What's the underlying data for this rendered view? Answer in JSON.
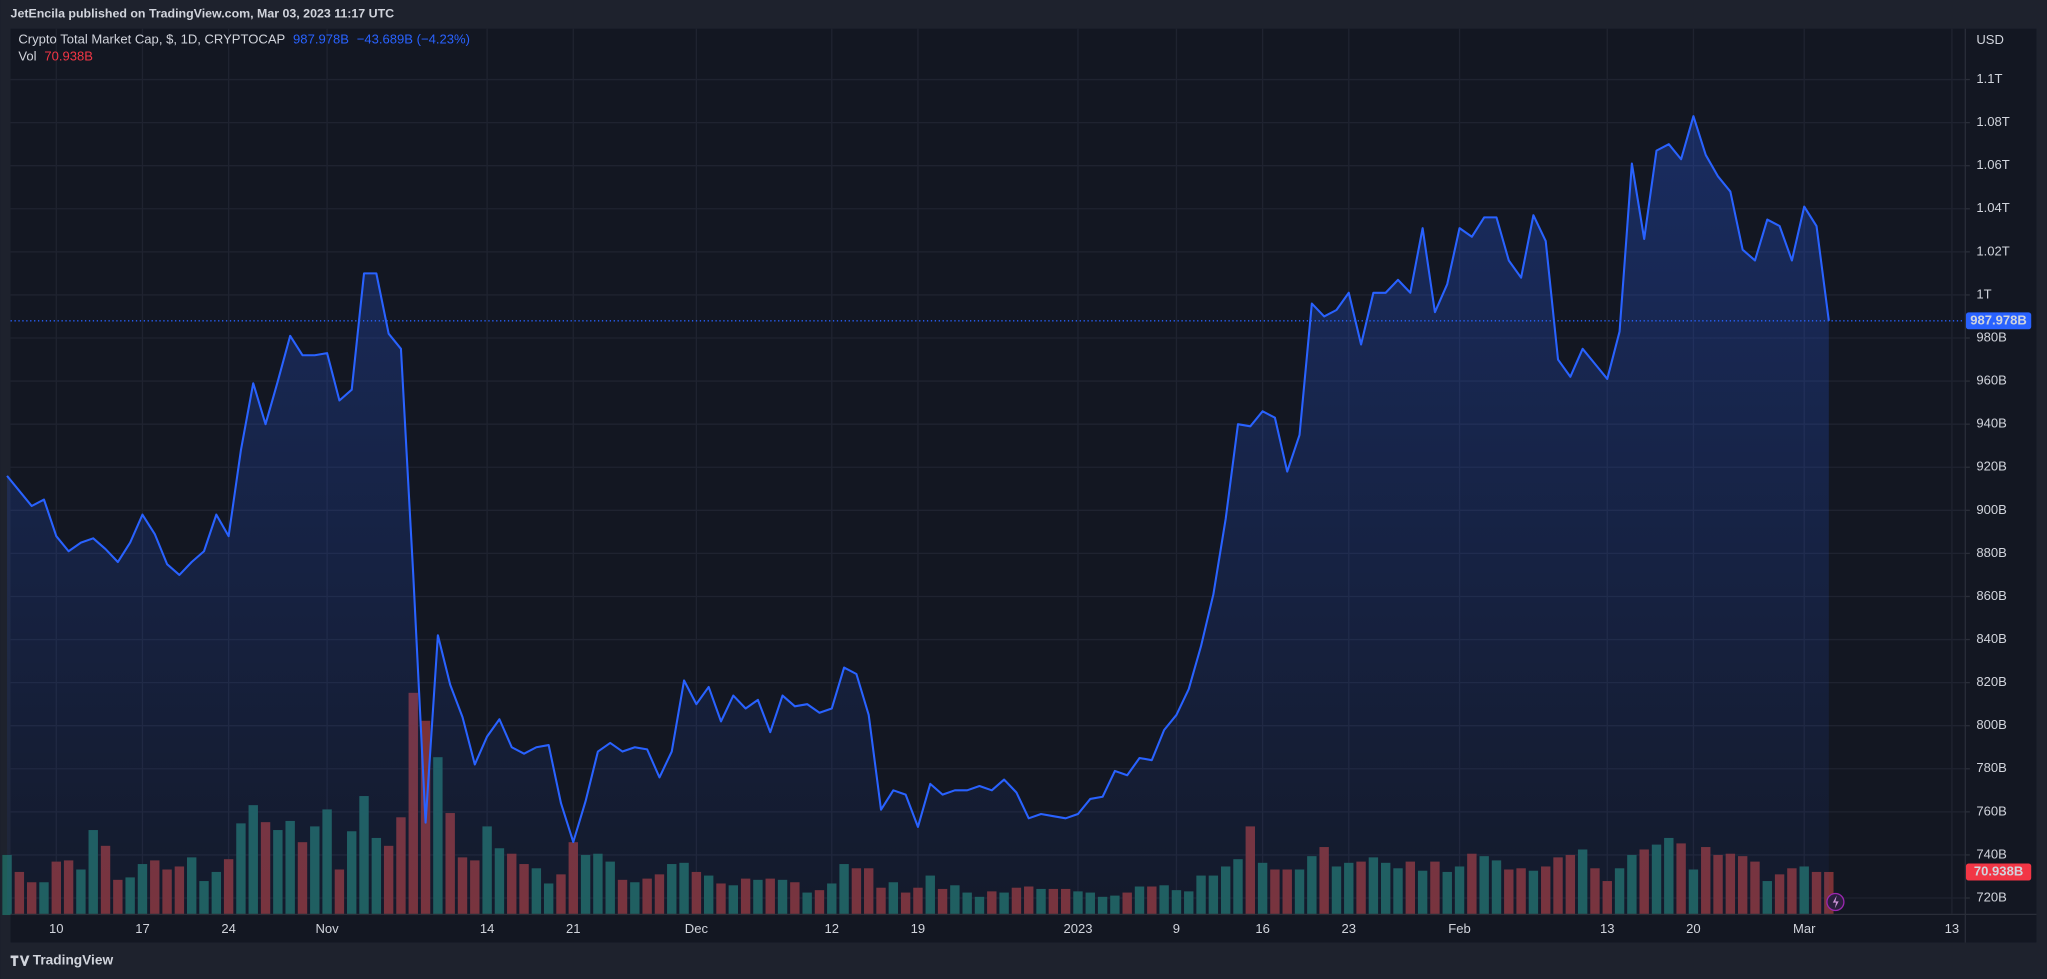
{
  "header": "JetEncila published on TradingView.com, Mar 03, 2023 11:17 UTC",
  "footer": "TradingView",
  "chart_data": {
    "type": "line",
    "y_unit": "USD",
    "legend": {
      "last": "987.978B",
      "change": "−43.689B (−4.23%)"
    },
    "volume_legend": {
      "last": "70.938B"
    },
    "categories": [
      null,
      null,
      null,
      null,
      "10",
      null,
      null,
      null,
      null,
      null,
      null,
      "17",
      null,
      null,
      null,
      null,
      null,
      null,
      "24",
      null,
      null,
      null,
      null,
      null,
      null,
      null,
      "Nov",
      null,
      null,
      null,
      null,
      null,
      null,
      null,
      null,
      null,
      null,
      null,
      null,
      "14",
      null,
      null,
      null,
      null,
      null,
      null,
      "21",
      null,
      null,
      null,
      null,
      null,
      null,
      null,
      null,
      null,
      "Dec",
      null,
      null,
      null,
      null,
      null,
      null,
      null,
      null,
      null,
      null,
      "12",
      null,
      null,
      null,
      null,
      null,
      null,
      "19",
      null,
      null,
      null,
      null,
      null,
      null,
      null,
      null,
      null,
      null,
      null,
      null,
      "2023",
      null,
      null,
      null,
      null,
      null,
      null,
      null,
      "9",
      null,
      null,
      null,
      null,
      null,
      null,
      "16",
      null,
      null,
      null,
      null,
      null,
      null,
      "23",
      null,
      null,
      null,
      null,
      null,
      null,
      null,
      null,
      "Feb",
      null,
      null,
      null,
      null,
      null,
      null,
      null,
      null,
      null,
      null,
      null,
      "13",
      null,
      null,
      null,
      null,
      null,
      null,
      "20",
      null,
      null,
      null,
      null,
      null,
      null,
      null,
      null,
      "Mar",
      null,
      null,
      null,
      null,
      null,
      null,
      null,
      null,
      null,
      null,
      null,
      "13"
    ],
    "series": [
      {
        "name": "Crypto Total Market Cap, $, 1D, CRYPTOCAP",
        "color": "#2962ff",
        "values": [
          916,
          909,
          902,
          905,
          888,
          881,
          885,
          887,
          882,
          876,
          885,
          898,
          889,
          875,
          870,
          876,
          881,
          898,
          888,
          928,
          959,
          940,
          960,
          981,
          972,
          972,
          973,
          951,
          956,
          1010,
          1010,
          982,
          975,
          870,
          755,
          842,
          819,
          804,
          782,
          795,
          803,
          790,
          787,
          790,
          791,
          764,
          746,
          765,
          788,
          792,
          788,
          790,
          789,
          776,
          788,
          821,
          810,
          818,
          802,
          814,
          808,
          812,
          797,
          814,
          809,
          810,
          806,
          808,
          827,
          824,
          805,
          761,
          770,
          768,
          753,
          773,
          768,
          770,
          770,
          772,
          770,
          775,
          769,
          757,
          759,
          758,
          757,
          759,
          766,
          767,
          779,
          777,
          785,
          784,
          798,
          805,
          817,
          837,
          861,
          896,
          940,
          939,
          946,
          943,
          918,
          935,
          996,
          990,
          993,
          1001,
          977,
          1001,
          1001,
          1007,
          1001,
          1031,
          992,
          1005,
          1031,
          1027,
          1036,
          1036,
          1016,
          1008,
          1037,
          1025,
          970,
          962,
          975,
          968,
          961,
          983,
          1061,
          1026,
          1067,
          1070,
          1063,
          1083,
          1065,
          1055,
          1048,
          1021,
          1016,
          1035,
          1032,
          1016,
          1041,
          1032,
          987.978,
          null,
          null,
          null,
          null,
          null,
          null,
          null,
          null,
          null,
          null
        ]
      },
      {
        "name": "Vol",
        "color": "#f23645",
        "up_color": "#1f5f5a",
        "down_color": "#7b3236",
        "values": [
          99,
          71,
          54,
          54,
          88,
          90,
          75,
          140,
          114,
          58,
          62,
          84,
          90,
          75,
          80,
          95,
          56,
          71,
          92,
          151,
          181,
          153,
          140,
          155,
          120,
          146,
          174,
          75,
          138,
          196,
          127,
          114,
          161,
          366,
          320,
          260,
          168,
          95,
          90,
          146,
          110,
          101,
          84,
          77,
          52,
          67,
          120,
          99,
          101,
          88,
          58,
          54,
          60,
          67,
          84,
          86,
          71,
          65,
          52,
          49,
          60,
          58,
          60,
          58,
          54,
          37,
          41,
          52,
          84,
          77,
          77,
          45,
          54,
          37,
          45,
          65,
          43,
          49,
          37,
          30,
          39,
          37,
          45,
          47,
          43,
          43,
          43,
          39,
          37,
          30,
          32,
          37,
          47,
          47,
          49,
          41,
          39,
          65,
          65,
          80,
          92,
          146,
          86,
          75,
          75,
          75,
          97,
          112,
          80,
          86,
          88,
          95,
          86,
          77,
          88,
          73,
          88,
          71,
          80,
          101,
          97,
          90,
          75,
          77,
          73,
          80,
          95,
          99,
          108,
          77,
          56,
          77,
          99,
          108,
          116,
          127,
          118,
          75,
          112,
          99,
          101,
          97,
          88,
          56,
          67,
          77,
          80,
          71,
          70.938,
          null,
          null,
          null,
          null,
          null,
          null,
          null,
          null,
          null,
          null
        ]
      }
    ],
    "ylim": [
      712.7,
      1123.6
    ],
    "yticks": [
      {
        "value": 720,
        "label": "720B"
      },
      {
        "value": 740,
        "label": "740B"
      },
      {
        "value": 760,
        "label": "760B"
      },
      {
        "value": 780,
        "label": "780B"
      },
      {
        "value": 800,
        "label": "800B"
      },
      {
        "value": 820,
        "label": "820B"
      },
      {
        "value": 840,
        "label": "840B"
      },
      {
        "value": 860,
        "label": "860B"
      },
      {
        "value": 880,
        "label": "880B"
      },
      {
        "value": 900,
        "label": "900B"
      },
      {
        "value": 920,
        "label": "920B"
      },
      {
        "value": 940,
        "label": "940B"
      },
      {
        "value": 960,
        "label": "960B"
      },
      {
        "value": 980,
        "label": "980B"
      },
      {
        "value": 1000,
        "label": "1T"
      },
      {
        "value": 1020,
        "label": "1.02T"
      },
      {
        "value": 1040,
        "label": "1.04T"
      },
      {
        "value": 1060,
        "label": "1.06T"
      },
      {
        "value": 1080,
        "label": "1.08T"
      },
      {
        "value": 1100,
        "label": "1.1T"
      }
    ],
    "grid": true
  }
}
